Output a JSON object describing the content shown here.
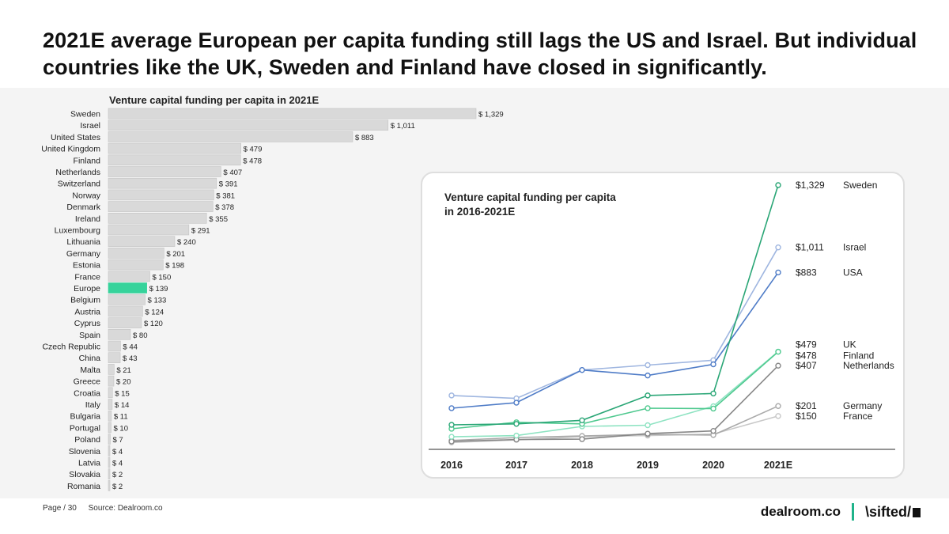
{
  "headline": "2021E average European per capita funding still lags the US and Israel. But individual countries like the UK, Sweden and Finland have closed in significantly.",
  "footer": {
    "page": "Page / 30",
    "source": "Source: Dealroom.co"
  },
  "brand": {
    "dealroom": "dealroom.co",
    "sifted": "\\sifted/"
  },
  "colors": {
    "bar": "#d9d9d9",
    "highlight": "#36d39b",
    "sweden": "#2aa676",
    "israel": "#9fb6e0",
    "usa": "#4f7cc7",
    "uk": "#8ee3c2",
    "finland": "#4fc98f",
    "netherlands": "#888888",
    "germany": "#aaaaaa",
    "france": "#c8c8c8"
  },
  "chart_data": [
    {
      "type": "bar",
      "orientation": "horizontal",
      "title": "Venture capital funding per capita in 2021E",
      "categories": [
        "Sweden",
        "Israel",
        "United States",
        "United Kingdom",
        "Finland",
        "Netherlands",
        "Switzerland",
        "Norway",
        "Denmark",
        "Ireland",
        "Luxembourg",
        "Lithuania",
        "Germany",
        "Estonia",
        "France",
        "Europe",
        "Belgium",
        "Austria",
        "Cyprus",
        "Spain",
        "Czech Republic",
        "China",
        "Malta",
        "Greece",
        "Croatia",
        "Italy",
        "Bulgaria",
        "Portugal",
        "Poland",
        "Slovenia",
        "Latvia",
        "Slovakia",
        "Romania"
      ],
      "values": [
        1329,
        1011,
        883,
        479,
        478,
        407,
        391,
        381,
        378,
        355,
        291,
        240,
        201,
        198,
        150,
        139,
        133,
        124,
        120,
        80,
        44,
        43,
        21,
        20,
        15,
        14,
        11,
        10,
        7,
        4,
        4,
        2,
        2
      ],
      "labels": [
        "$ 1,329",
        "$ 1,011",
        "$ 883",
        "$ 479",
        "$ 478",
        "$ 407",
        "$ 391",
        "$ 381",
        "$ 378",
        "$ 355",
        "$ 291",
        "$ 240",
        "$ 201",
        "$ 198",
        "$ 150",
        "$ 139",
        "$ 133",
        "$ 124",
        "$ 120",
        "$ 80",
        "$ 44",
        "$ 43",
        "$ 21",
        "$ 20",
        "$ 15",
        "$ 14",
        "$ 11",
        "$ 10",
        "$ 7",
        "$ 4",
        "$ 4",
        "$ 2",
        "$ 2"
      ],
      "highlight": "Europe",
      "xlim": [
        0,
        1329
      ]
    },
    {
      "type": "line",
      "title": "Venture capital funding per capita in 2016-2021E",
      "title_lines": [
        "Venture capital funding per capita",
        "in 2016-2021E"
      ],
      "x": [
        "2016",
        "2017",
        "2018",
        "2019",
        "2020",
        "2021E"
      ],
      "ylim": [
        0,
        1329
      ],
      "series": [
        {
          "name": "Sweden",
          "key": "sweden",
          "end_label": "$1,329",
          "values": [
            105,
            110,
            128,
            255,
            265,
            1329
          ]
        },
        {
          "name": "Israel",
          "key": "israel",
          "end_label": "$1,011",
          "values": [
            255,
            240,
            385,
            410,
            435,
            1011
          ]
        },
        {
          "name": "USA",
          "key": "usa",
          "end_label": "$883",
          "values": [
            190,
            218,
            385,
            357,
            414,
            883
          ]
        },
        {
          "name": "UK",
          "key": "uk",
          "end_label": "$479",
          "values": [
            44,
            50,
            97,
            103,
            200,
            479
          ]
        },
        {
          "name": "Finland",
          "key": "finland",
          "end_label": "$478",
          "values": [
            85,
            118,
            110,
            190,
            188,
            478
          ]
        },
        {
          "name": "Netherlands",
          "key": "netherlands",
          "end_label": "$407",
          "values": [
            20,
            30,
            32,
            60,
            74,
            407
          ]
        },
        {
          "name": "Germany",
          "key": "germany",
          "end_label": "$201",
          "values": [
            25,
            40,
            48,
            56,
            53,
            201
          ]
        },
        {
          "name": "France",
          "key": "france",
          "end_label": "$150",
          "values": [
            15,
            28,
            45,
            50,
            58,
            150
          ]
        }
      ]
    }
  ]
}
